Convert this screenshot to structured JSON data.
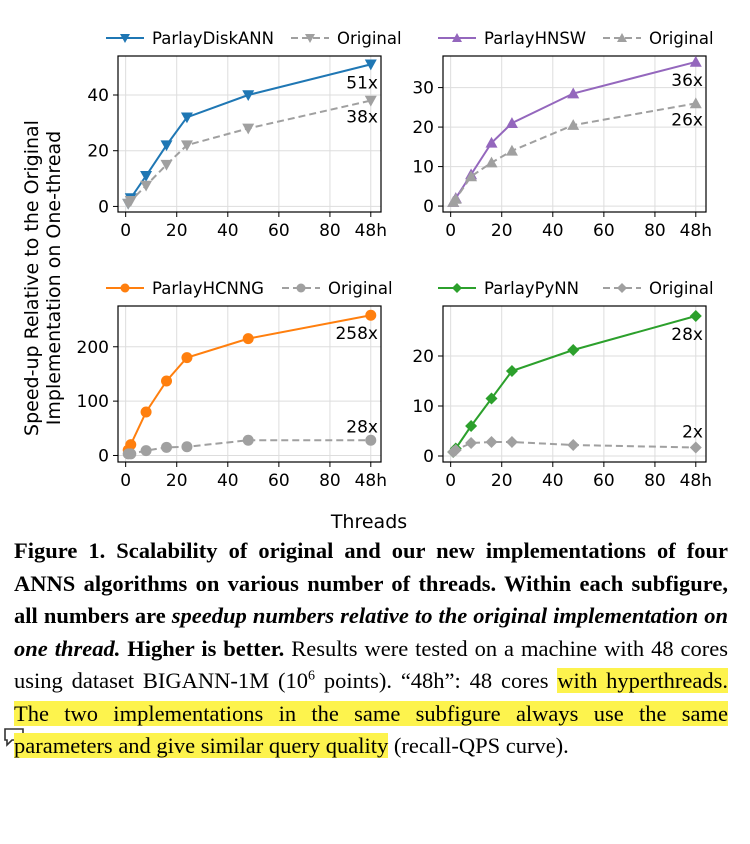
{
  "figure": {
    "shared_xlabel": "Threads",
    "shared_ylabel_line1": "Speed-up Relative to the Original",
    "shared_ylabel_line2": "Implementation on One-thread"
  },
  "chart_data": [
    {
      "type": "line",
      "xticks": [
        "0",
        "20",
        "40",
        "60",
        "80",
        "48h"
      ],
      "yticks": [
        "0",
        "20",
        "40"
      ],
      "ylim": [
        -2,
        54
      ],
      "grid": true,
      "legend_position": "top",
      "series": [
        {
          "name": "ParlayDiskANN",
          "color": "#1f77b4",
          "marker": "triangle-down",
          "dash": false,
          "x": [
            1,
            2,
            8,
            16,
            24,
            48,
            96
          ],
          "y": [
            1,
            3,
            11,
            22,
            32,
            40,
            51
          ],
          "end_label": "51x"
        },
        {
          "name": "Original",
          "color": "#a0a0a0",
          "marker": "triangle-down",
          "dash": true,
          "x": [
            1,
            2,
            8,
            16,
            24,
            48,
            96
          ],
          "y": [
            1,
            2,
            7.5,
            15,
            22,
            28,
            38
          ],
          "end_label": "38x"
        }
      ]
    },
    {
      "type": "line",
      "xticks": [
        "0",
        "20",
        "40",
        "60",
        "80",
        "48h"
      ],
      "yticks": [
        "0",
        "10",
        "20",
        "30"
      ],
      "ylim": [
        -1.5,
        38
      ],
      "grid": true,
      "legend_position": "top",
      "series": [
        {
          "name": "ParlayHNSW",
          "color": "#9467bd",
          "marker": "triangle-up",
          "dash": false,
          "x": [
            1,
            2,
            8,
            16,
            24,
            48,
            96
          ],
          "y": [
            1,
            2,
            8,
            16,
            21,
            28.5,
            36.5
          ],
          "end_label": "36x"
        },
        {
          "name": "Original",
          "color": "#a0a0a0",
          "marker": "triangle-up",
          "dash": true,
          "x": [
            1,
            2,
            8,
            16,
            24,
            48,
            96
          ],
          "y": [
            1,
            1.8,
            7.5,
            11,
            14,
            20.5,
            26
          ],
          "end_label": "26x"
        }
      ]
    },
    {
      "type": "line",
      "xticks": [
        "0",
        "20",
        "40",
        "60",
        "80",
        "48h"
      ],
      "yticks": [
        "0",
        "100",
        "200"
      ],
      "ylim": [
        -12,
        275
      ],
      "grid": true,
      "legend_position": "top",
      "series": [
        {
          "name": "ParlayHCNNG",
          "color": "#ff7f0e",
          "marker": "circle",
          "dash": false,
          "x": [
            1,
            2,
            8,
            16,
            24,
            48,
            96
          ],
          "y": [
            10,
            20,
            80,
            137,
            180,
            215,
            258
          ],
          "end_label": "258x"
        },
        {
          "name": "Original",
          "color": "#a0a0a0",
          "marker": "circle",
          "dash": true,
          "x": [
            1,
            2,
            8,
            16,
            24,
            48,
            96
          ],
          "y": [
            3,
            3,
            9,
            15,
            16,
            28,
            28
          ],
          "end_label": "28x"
        }
      ]
    },
    {
      "type": "line",
      "xticks": [
        "0",
        "20",
        "40",
        "60",
        "80",
        "48h"
      ],
      "yticks": [
        "0",
        "10",
        "20"
      ],
      "ylim": [
        -1.2,
        30
      ],
      "grid": true,
      "legend_position": "top",
      "series": [
        {
          "name": "ParlayPyNN",
          "color": "#2ca02c",
          "marker": "diamond",
          "dash": false,
          "x": [
            1,
            2,
            8,
            16,
            24,
            48,
            96
          ],
          "y": [
            0.8,
            1.5,
            6,
            11.5,
            17,
            21.2,
            28
          ],
          "end_label": "28x"
        },
        {
          "name": "Original",
          "color": "#a0a0a0",
          "marker": "diamond",
          "dash": true,
          "x": [
            1,
            2,
            8,
            16,
            24,
            48,
            96
          ],
          "y": [
            0.8,
            1.2,
            2.6,
            2.8,
            2.8,
            2.2,
            1.7
          ],
          "end_label": "2x"
        }
      ]
    }
  ],
  "caption": {
    "figure_label": "Figure 1.",
    "bold_text": " Scalability of original and our new implementations of four ANNS algorithms on various number of threads. Within each subfigure, all numbers are ",
    "italic_text": "speedup numbers relative to the original implementation on one thread.",
    "bold_text2": " Higher is better.",
    "plain_text": " Results were tested on a machine with 48 cores using dataset BIGANN-1M (10",
    "superscript": "6",
    "plain_text2": " points). “48h”: 48 cores ",
    "highlighted_text": "with hyperthreads. The two implementations in the same subfigure always use the same parameters and give similar query quality",
    "plain_text3": " (recall-QPS curve)."
  },
  "annotation": {
    "icon": "comment-note-icon",
    "highlight_color": "#fdf34d"
  }
}
